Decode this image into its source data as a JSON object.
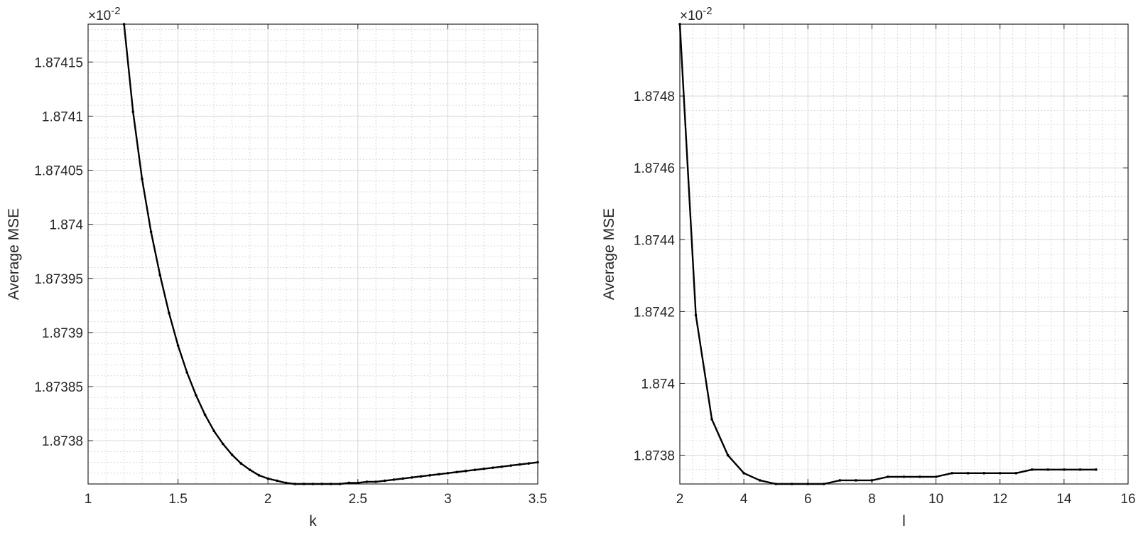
{
  "chart_data": [
    {
      "type": "line",
      "xlabel": "k",
      "ylabel": "Average MSE",
      "exponent_base": "×10",
      "exponent_power": "-2",
      "xlim": [
        1,
        3.5
      ],
      "ylim": [
        1.87376,
        1.874185
      ],
      "x_ticks": [
        1,
        1.5,
        2,
        2.5,
        3,
        3.5
      ],
      "x_tick_labels": [
        "1",
        "1.5",
        "2",
        "2.5",
        "3",
        "3.5"
      ],
      "y_ticks": [
        1.8738,
        1.87385,
        1.8739,
        1.87395,
        1.874,
        1.87405,
        1.8741,
        1.87415
      ],
      "y_tick_labels": [
        "1.8738",
        "1.87385",
        "1.8739",
        "1.87395",
        "1.874",
        "1.87405",
        "1.8741",
        "1.87415"
      ],
      "grid": true,
      "minor_grid": true,
      "series": [
        {
          "color": "#000000",
          "marker": "dot",
          "x": [
            1.2,
            1.25,
            1.3,
            1.35,
            1.4,
            1.45,
            1.5,
            1.55,
            1.6,
            1.65,
            1.7,
            1.75,
            1.8,
            1.85,
            1.9,
            1.95,
            2.0,
            2.05,
            2.1,
            2.15,
            2.2,
            2.25,
            2.3,
            2.35,
            2.4,
            2.45,
            2.5,
            2.55,
            2.6,
            2.65,
            2.7,
            2.75,
            2.8,
            2.85,
            2.9,
            2.95,
            3.0,
            3.05,
            3.1,
            3.15,
            3.2,
            3.25,
            3.3,
            3.35,
            3.4,
            3.45,
            3.5
          ],
          "y": [
            1.874185,
            1.874104,
            1.874042,
            1.873993,
            1.873953,
            1.873918,
            1.873888,
            1.873863,
            1.873842,
            1.873824,
            1.873809,
            1.873797,
            1.873787,
            1.873779,
            1.873773,
            1.873768,
            1.873765,
            1.873763,
            1.873761,
            1.87376,
            1.87376,
            1.87376,
            1.87376,
            1.87376,
            1.87376,
            1.873761,
            1.873761,
            1.873762,
            1.873762,
            1.873763,
            1.873764,
            1.873765,
            1.873766,
            1.873767,
            1.873768,
            1.873769,
            1.87377,
            1.873771,
            1.873772,
            1.873773,
            1.873774,
            1.873775,
            1.873776,
            1.873777,
            1.873778,
            1.873779,
            1.87378
          ]
        }
      ]
    },
    {
      "type": "line",
      "xlabel": "l",
      "ylabel": "Average MSE",
      "exponent_base": "×10",
      "exponent_power": "-2",
      "xlim": [
        2,
        16
      ],
      "ylim": [
        1.87372,
        1.875
      ],
      "x_ticks": [
        2,
        4,
        6,
        8,
        10,
        12,
        14,
        16
      ],
      "x_tick_labels": [
        "2",
        "4",
        "6",
        "8",
        "10",
        "12",
        "14",
        "16"
      ],
      "y_ticks": [
        1.8738,
        1.874,
        1.8742,
        1.8744,
        1.8746,
        1.8748
      ],
      "y_tick_labels": [
        "1.8738",
        "1.874",
        "1.8742",
        "1.8744",
        "1.8746",
        "1.8748"
      ],
      "grid": true,
      "minor_grid": true,
      "series": [
        {
          "color": "#000000",
          "marker": "dot",
          "x": [
            2,
            2.5,
            3,
            3.5,
            4,
            4.5,
            5,
            5.5,
            6,
            6.5,
            7,
            7.5,
            8,
            8.5,
            9,
            9.5,
            10,
            10.5,
            11,
            11.5,
            12,
            12.5,
            13,
            13.5,
            14,
            14.5,
            15
          ],
          "y": [
            1.875,
            1.87419,
            1.8739,
            1.8738,
            1.87375,
            1.87373,
            1.87372,
            1.87372,
            1.87372,
            1.87372,
            1.87373,
            1.87373,
            1.87373,
            1.87374,
            1.87374,
            1.87374,
            1.87374,
            1.87375,
            1.87375,
            1.87375,
            1.87375,
            1.87375,
            1.87376,
            1.87376,
            1.87376,
            1.87376,
            1.87376
          ]
        }
      ]
    }
  ]
}
